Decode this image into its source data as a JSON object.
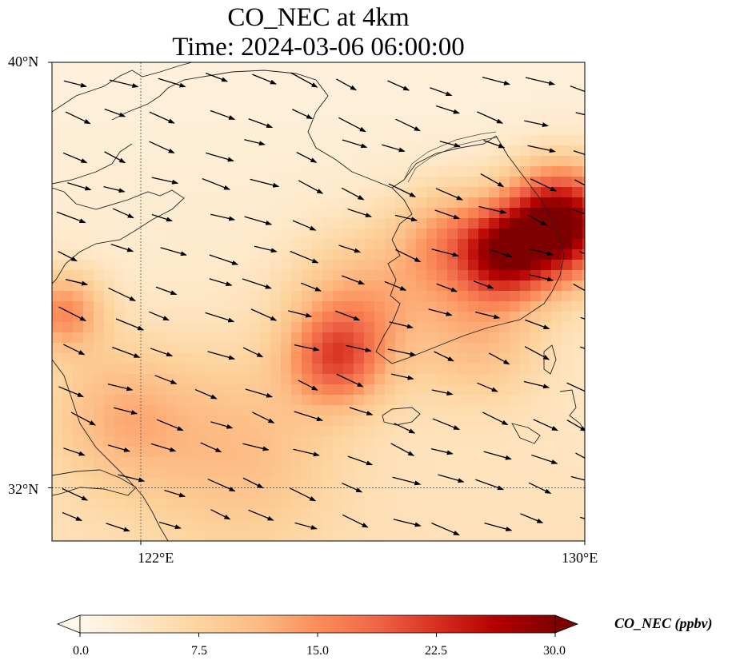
{
  "title": {
    "line1": "CO_NEC at 4km",
    "line2": "Time: 2024-03-06 06:00:00"
  },
  "map": {
    "lon_range": [
      120.4,
      130
    ],
    "lat_range": [
      31.0,
      40.0
    ],
    "lon_ticks": [
      {
        "value": 122,
        "label": "122°E"
      },
      {
        "value": 130,
        "label": "130°E"
      }
    ],
    "lat_ticks": [
      {
        "value": 40,
        "label": "40°N"
      },
      {
        "value": 32,
        "label": "32°N"
      }
    ],
    "gridline_lon": 122,
    "gridline_lat": 32,
    "field": "CO_NEC",
    "level": "4km",
    "wind_vectors": "overlay arrows, predominantly westerly/northwesterly flow"
  },
  "colorbar": {
    "label": "CO_NEC (ppbv)",
    "min": 0.0,
    "max": 30.0,
    "ticks": [
      "0.0",
      "7.5",
      "15.0",
      "22.5",
      "30.0"
    ],
    "colormap": "OrRd",
    "extend": "both",
    "colors": [
      "#fff7ec",
      "#fee8c8",
      "#fdd49e",
      "#fdbb84",
      "#fc8d59",
      "#ef6548",
      "#d7301f",
      "#b30000",
      "#7f0000"
    ]
  }
}
